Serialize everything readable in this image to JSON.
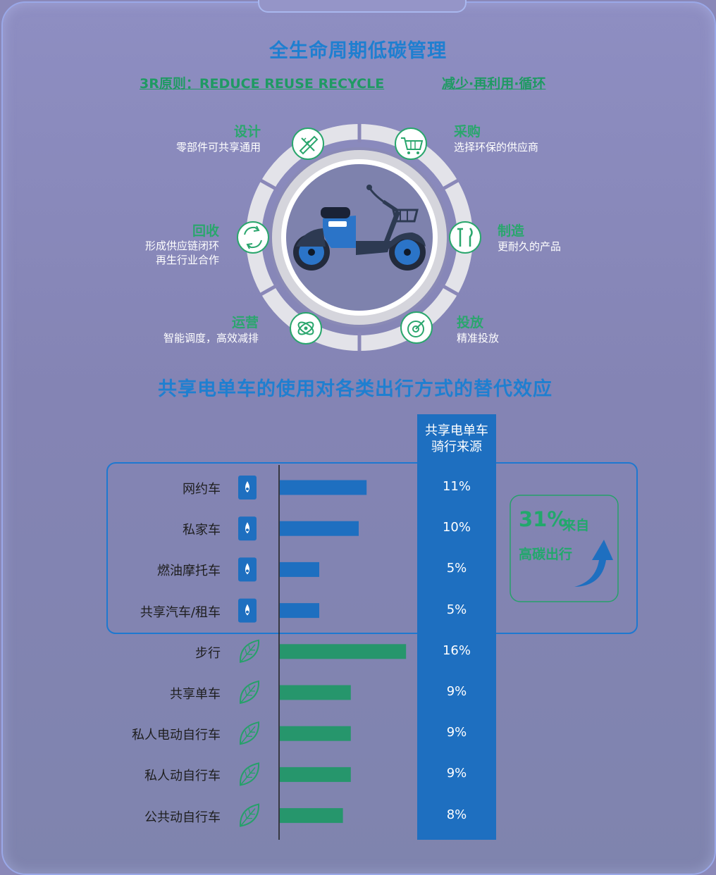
{
  "title": "全生命周期低碳管理",
  "principle_left": "3R原则：REDUCE  REUSE  RECYCLE",
  "principle_right": "减少·再利用·循环",
  "stages": [
    {
      "title": "设计",
      "desc": [
        "零部件可共享通用"
      ],
      "icon": "pencil-ruler-icon"
    },
    {
      "title": "采购",
      "desc": [
        "选择环保的供应商"
      ],
      "icon": "cart-icon"
    },
    {
      "title": "制造",
      "desc": [
        "更耐久的产品"
      ],
      "icon": "tools-icon"
    },
    {
      "title": "投放",
      "desc": [
        "精准投放"
      ],
      "icon": "target-icon"
    },
    {
      "title": "运营",
      "desc": [
        "智能调度，高效减排"
      ],
      "icon": "orbit-icon"
    },
    {
      "title": "回收",
      "desc": [
        "形成供应链闭环",
        "再生行业合作"
      ],
      "icon": "recycle-icon"
    }
  ],
  "section2_title": "共享电单车的使用对各类出行方式的替代效应",
  "column_header": [
    "共享电单车",
    "骑行来源"
  ],
  "callout": {
    "value": "31%",
    "line1": "来自",
    "line2": "高碳出行"
  },
  "colors": {
    "high_carbon": "#1e6fc0",
    "low_carbon": "#26966c",
    "accent_blue": "#1f7fd0",
    "green": "#2aa66d"
  },
  "chart_data": {
    "type": "bar",
    "orientation": "horizontal",
    "categories": [
      "网约车",
      "私家车",
      "燃油摩托车",
      "共享汽车/租车",
      "步行",
      "共享单车",
      "私人电动自行车",
      "私人动自行车",
      "公共动自行车"
    ],
    "values": [
      11,
      10,
      5,
      5,
      16,
      9,
      9,
      9,
      8
    ],
    "labels": [
      "11%",
      "10%",
      "5%",
      "5%",
      "16%",
      "9%",
      "9%",
      "9%",
      "8%"
    ],
    "groups": [
      "high-carbon",
      "high-carbon",
      "high-carbon",
      "high-carbon",
      "low-carbon",
      "low-carbon",
      "low-carbon",
      "low-carbon",
      "low-carbon"
    ],
    "group_icons": {
      "high-carbon": "oil-drop-icon",
      "low-carbon": "leaf-icon"
    },
    "xlim": [
      0,
      16
    ]
  }
}
